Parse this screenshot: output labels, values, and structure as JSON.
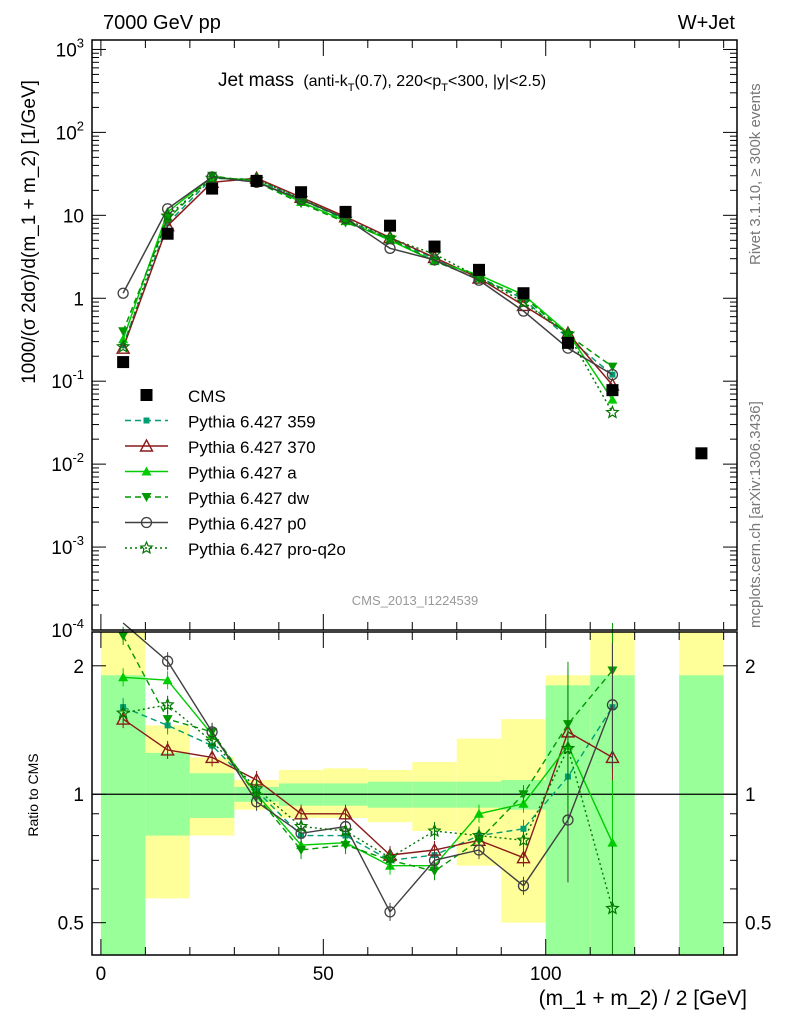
{
  "header": {
    "left": "7000 GeV pp",
    "right": "W+Jet"
  },
  "side_labels": {
    "rivet": "Rivet 3.1.10, ≥ 300k events",
    "mcplots": "mcplots.cern.ch [arXiv:1306.3436]"
  },
  "main_title": {
    "main": "Jet mass",
    "detail_a": "(anti-k",
    "detail_a_sub": "T",
    "detail_b": "(0.7), 220<p",
    "detail_b_sub": "T",
    "detail_c": "<300, |y|<2.5)"
  },
  "watermark": "CMS_2013_I1224539",
  "colors": {
    "cms": "#000000",
    "p359": "#009e73",
    "p370": "#8b1a1a",
    "pa": "#00cc00",
    "pdw": "#009900",
    "pp0": "#404040",
    "pq2o": "#007700",
    "band_inner": "#99ff99",
    "band_outer": "#ffff99"
  },
  "chart_data": [
    {
      "type": "line",
      "panel": "main",
      "ylabel": "1000/(σ 2dσ)/d(m_1 + m_2) [1/GeV]",
      "yscale": "log",
      "xlim": [
        -2,
        143
      ],
      "ylim": [
        0.0001,
        1300
      ],
      "yticks": [
        {
          "value": 0.0001,
          "base": "10",
          "exp": "-4"
        },
        {
          "value": 0.001,
          "base": "10",
          "exp": "-3"
        },
        {
          "value": 0.01,
          "base": "10",
          "exp": "-2"
        },
        {
          "value": 0.1,
          "base": "10",
          "exp": "-1"
        },
        {
          "value": 1,
          "base": "1",
          "exp": ""
        },
        {
          "value": 10,
          "base": "10",
          "exp": ""
        },
        {
          "value": 100,
          "base": "10",
          "exp": "2"
        },
        {
          "value": 1000,
          "base": "10",
          "exp": "3"
        }
      ],
      "legend_position": "left-center",
      "cms": {
        "name": "CMS",
        "x": [
          5,
          15,
          25,
          35,
          45,
          55,
          65,
          75,
          85,
          95,
          105,
          115,
          135
        ],
        "y": [
          0.17,
          6.0,
          21.0,
          26.0,
          19.0,
          11.0,
          7.5,
          4.2,
          2.2,
          1.15,
          0.29,
          0.078,
          0.0135
        ]
      },
      "series": [
        {
          "name": "Pythia 6.427 359",
          "key": "p359",
          "style": "dashed",
          "marker": "square-small",
          "x": [
            5,
            15,
            25,
            35,
            45,
            55,
            65,
            75,
            85,
            95,
            105,
            115
          ],
          "y": [
            0.27,
            8.0,
            28,
            27,
            15.5,
            8.8,
            5.2,
            3.0,
            1.8,
            0.98,
            0.33,
            0.12
          ]
        },
        {
          "name": "Pythia 6.427 370",
          "key": "p370",
          "style": "solid",
          "marker": "triangle-open",
          "x": [
            5,
            15,
            25,
            35,
            45,
            55,
            65,
            75,
            85,
            95,
            105,
            115
          ],
          "y": [
            0.25,
            7.5,
            25,
            28,
            16.5,
            9.6,
            5.4,
            3.1,
            1.75,
            0.82,
            0.38,
            0.09
          ]
        },
        {
          "name": "Pythia 6.427 a",
          "key": "pa",
          "style": "solid",
          "marker": "triangle",
          "x": [
            5,
            15,
            25,
            35,
            45,
            55,
            65,
            75,
            85,
            95,
            105,
            115
          ],
          "y": [
            0.32,
            11.0,
            29,
            26,
            14.5,
            8.5,
            5.0,
            2.8,
            1.9,
            1.1,
            0.38,
            0.06
          ]
        },
        {
          "name": "Pythia 6.427 dw",
          "key": "pdw",
          "style": "dashed",
          "marker": "triangle-down",
          "x": [
            5,
            15,
            25,
            35,
            45,
            55,
            65,
            75,
            85,
            95,
            105,
            115
          ],
          "y": [
            0.4,
            9.0,
            30,
            25,
            14.0,
            8.2,
            5.2,
            2.8,
            1.7,
            1.05,
            0.36,
            0.15
          ]
        },
        {
          "name": "Pythia 6.427 p0",
          "key": "pp0",
          "style": "solid",
          "marker": "circle-open",
          "x": [
            5,
            15,
            25,
            35,
            45,
            55,
            65,
            75,
            85,
            95,
            105,
            115
          ],
          "y": [
            1.15,
            12.0,
            29,
            25,
            15.5,
            9.2,
            4.0,
            2.9,
            1.65,
            0.7,
            0.25,
            0.12
          ]
        },
        {
          "name": "Pythia 6.427 pro-q2o",
          "key": "pq2o",
          "style": "dotted",
          "marker": "star-open",
          "x": [
            5,
            15,
            25,
            35,
            45,
            55,
            65,
            75,
            85,
            95,
            105,
            115
          ],
          "y": [
            0.26,
            9.8,
            28,
            27,
            16.0,
            9.0,
            5.3,
            3.4,
            1.8,
            0.9,
            0.37,
            0.042
          ]
        }
      ]
    },
    {
      "type": "line",
      "panel": "ratio",
      "ylabel": "Ratio to CMS",
      "xlabel": "(m_1 + m_2) / 2 [GeV]",
      "yscale": "log",
      "xlim": [
        -2,
        143
      ],
      "ylim": [
        0.42,
        2.4
      ],
      "xticks": [
        0,
        50,
        100
      ],
      "yticks": [
        0.5,
        1,
        2
      ],
      "bands": {
        "x_edges": [
          [
            0,
            10
          ],
          [
            10,
            20
          ],
          [
            20,
            30
          ],
          [
            30,
            40
          ],
          [
            40,
            50
          ],
          [
            50,
            60
          ],
          [
            60,
            70
          ],
          [
            70,
            80
          ],
          [
            80,
            90
          ],
          [
            90,
            100
          ],
          [
            100,
            110
          ],
          [
            110,
            120
          ],
          [
            130,
            140
          ]
        ],
        "inner": [
          [
            0.3,
            1.9
          ],
          [
            0.8,
            1.25
          ],
          [
            0.88,
            1.12
          ],
          [
            0.96,
            1.04
          ],
          [
            0.94,
            1.06
          ],
          [
            0.94,
            1.06
          ],
          [
            0.93,
            1.07
          ],
          [
            0.93,
            1.07
          ],
          [
            0.93,
            1.07
          ],
          [
            0.92,
            1.08
          ],
          [
            0.3,
            1.8
          ],
          [
            0.3,
            1.9
          ],
          [
            0.3,
            1.9
          ]
        ],
        "outer": [
          [
            0.3,
            2.4
          ],
          [
            0.57,
            1.45
          ],
          [
            0.8,
            1.22
          ],
          [
            0.92,
            1.08
          ],
          [
            0.88,
            1.14
          ],
          [
            0.88,
            1.15
          ],
          [
            0.86,
            1.14
          ],
          [
            0.82,
            1.19
          ],
          [
            0.68,
            1.35
          ],
          [
            0.5,
            1.5
          ],
          [
            0.3,
            1.9
          ],
          [
            0.3,
            2.4
          ],
          [
            0.3,
            2.4
          ]
        ]
      },
      "series": [
        {
          "name": "Pythia 6.427 359",
          "key": "p359",
          "x": [
            5,
            15,
            25,
            35,
            45,
            55,
            65,
            75,
            85,
            95,
            105,
            115
          ],
          "y": [
            1.6,
            1.45,
            1.3,
            1.02,
            0.8,
            0.8,
            0.7,
            0.72,
            0.8,
            0.83,
            1.1,
            1.6
          ]
        },
        {
          "name": "Pythia 6.427 370",
          "key": "p370",
          "x": [
            5,
            15,
            25,
            35,
            45,
            55,
            65,
            75,
            85,
            95,
            105,
            115
          ],
          "y": [
            1.5,
            1.27,
            1.22,
            1.08,
            0.9,
            0.9,
            0.72,
            0.74,
            0.78,
            0.71,
            1.4,
            1.22
          ]
        },
        {
          "name": "Pythia 6.427 a",
          "key": "pa",
          "x": [
            5,
            15,
            25,
            35,
            45,
            55,
            65,
            75,
            85,
            95,
            105,
            115
          ],
          "y": [
            1.88,
            1.85,
            1.38,
            1.0,
            0.76,
            0.77,
            0.68,
            0.68,
            0.9,
            0.95,
            1.3,
            0.77
          ]
        },
        {
          "name": "Pythia 6.427 dw",
          "key": "pdw",
          "x": [
            5,
            15,
            25,
            35,
            45,
            55,
            65,
            75,
            85,
            95,
            105,
            115
          ],
          "y": [
            2.35,
            1.5,
            1.4,
            0.99,
            0.74,
            0.76,
            0.7,
            0.66,
            0.78,
            1.0,
            1.46,
            1.95
          ]
        },
        {
          "name": "Pythia 6.427 p0",
          "key": "pp0",
          "x": [
            5,
            15,
            25,
            35,
            45,
            55,
            65,
            75,
            85,
            95,
            105,
            115
          ],
          "y": [
            4.5,
            2.05,
            1.4,
            0.96,
            0.81,
            0.84,
            0.53,
            0.7,
            0.74,
            0.61,
            0.87,
            1.62
          ]
        },
        {
          "name": "Pythia 6.427 pro-q2o",
          "key": "pq2o",
          "x": [
            5,
            15,
            25,
            35,
            45,
            55,
            65,
            75,
            85,
            95,
            105,
            115
          ],
          "y": [
            1.55,
            1.62,
            1.33,
            1.03,
            0.84,
            0.82,
            0.71,
            0.82,
            0.8,
            0.78,
            1.28,
            0.54
          ]
        }
      ]
    }
  ]
}
